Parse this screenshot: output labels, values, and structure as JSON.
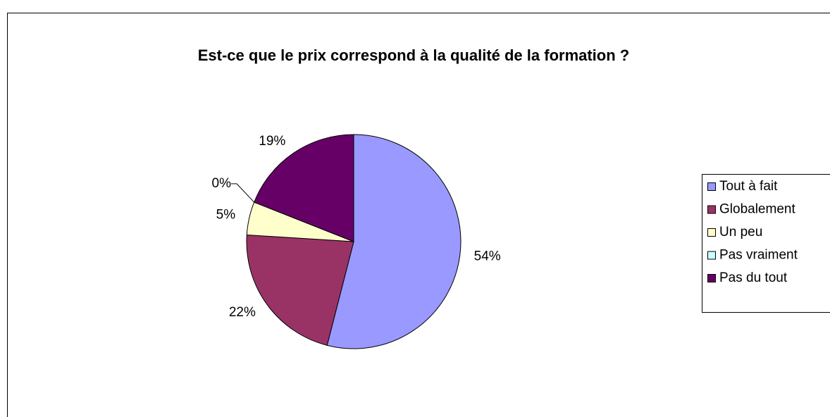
{
  "chart_data": {
    "type": "pie",
    "title": "Est-ce que le prix correspond à la qualité de la formation ?",
    "categories": [
      "Tout à fait",
      "Globalement",
      "Un peu",
      "Pas vraiment",
      "Pas du tout"
    ],
    "values": [
      54,
      22,
      5,
      0,
      19
    ],
    "value_labels": [
      "54%",
      "22%",
      "5%",
      "0%",
      "19%"
    ],
    "colors": [
      "#9999ff",
      "#993366",
      "#ffffcc",
      "#ccffff",
      "#660066"
    ],
    "legend": "right"
  }
}
